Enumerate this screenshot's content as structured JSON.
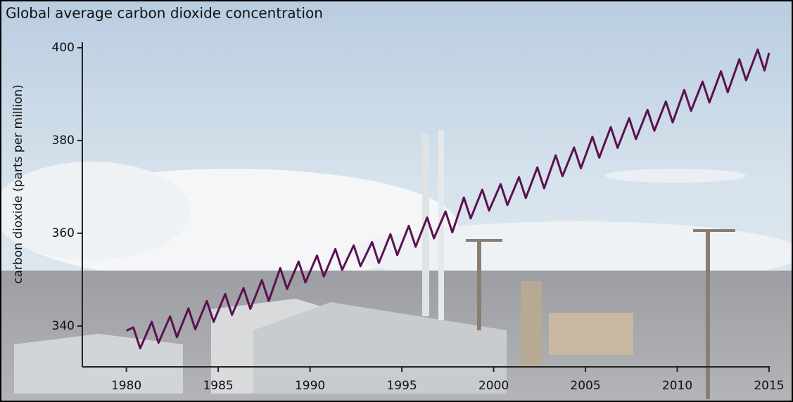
{
  "chart_data": {
    "type": "line",
    "title": "Global average carbon dioxide concentration",
    "y_label": "carbon dioxide (parts per million)",
    "xlim": [
      1977.6,
      2015
    ],
    "ylim": [
      331.2,
      401.2
    ],
    "xticks": [
      1980,
      1985,
      1990,
      1995,
      2000,
      2005,
      2010,
      2015
    ],
    "yticks": [
      340,
      360,
      380,
      400
    ],
    "grid": false,
    "series": [
      {
        "color": "#5b1150",
        "x": [
          1980,
          1980.38,
          1980.75,
          1981.38,
          1981.75,
          1982.38,
          1982.75,
          1983.38,
          1983.75,
          1984.38,
          1984.75,
          1985.38,
          1985.75,
          1986.38,
          1986.75,
          1987.38,
          1987.75,
          1988.38,
          1988.75,
          1989.38,
          1989.75,
          1990.38,
          1990.75,
          1991.38,
          1991.75,
          1992.38,
          1992.75,
          1993.38,
          1993.75,
          1994.38,
          1994.75,
          1995.38,
          1995.75,
          1996.38,
          1996.75,
          1997.38,
          1997.75,
          1998.38,
          1998.75,
          1999.38,
          1999.75,
          2000.38,
          2000.75,
          2001.38,
          2001.75,
          2002.38,
          2002.75,
          2003.38,
          2003.75,
          2004.38,
          2004.75,
          2005.38,
          2005.75,
          2006.38,
          2006.75,
          2007.38,
          2007.75,
          2008.38,
          2008.75,
          2009.38,
          2009.75,
          2010.38,
          2010.75,
          2011.38,
          2011.75,
          2012.38,
          2012.75,
          2013.38,
          2013.75,
          2014.38,
          2014.75,
          2015
        ],
        "values": [
          339.0,
          339.7,
          335.2,
          340.9,
          336.4,
          342.1,
          337.6,
          343.8,
          339.3,
          345.4,
          340.9,
          346.9,
          342.4,
          348.2,
          343.7,
          349.9,
          345.4,
          352.5,
          348.0,
          353.9,
          349.4,
          355.2,
          350.7,
          356.6,
          352.1,
          357.4,
          352.9,
          358.1,
          353.6,
          359.8,
          355.3,
          361.6,
          357.1,
          363.4,
          358.9,
          364.7,
          360.2,
          367.7,
          363.2,
          369.4,
          364.9,
          370.6,
          366.1,
          372.1,
          367.6,
          374.2,
          369.7,
          376.8,
          372.3,
          378.5,
          374.0,
          380.8,
          376.3,
          382.9,
          378.4,
          384.8,
          380.3,
          386.6,
          382.1,
          388.4,
          383.9,
          390.9,
          386.4,
          392.7,
          388.2,
          394.9,
          390.4,
          397.5,
          393.0,
          399.6,
          395.1,
          398.9
        ]
      }
    ]
  }
}
